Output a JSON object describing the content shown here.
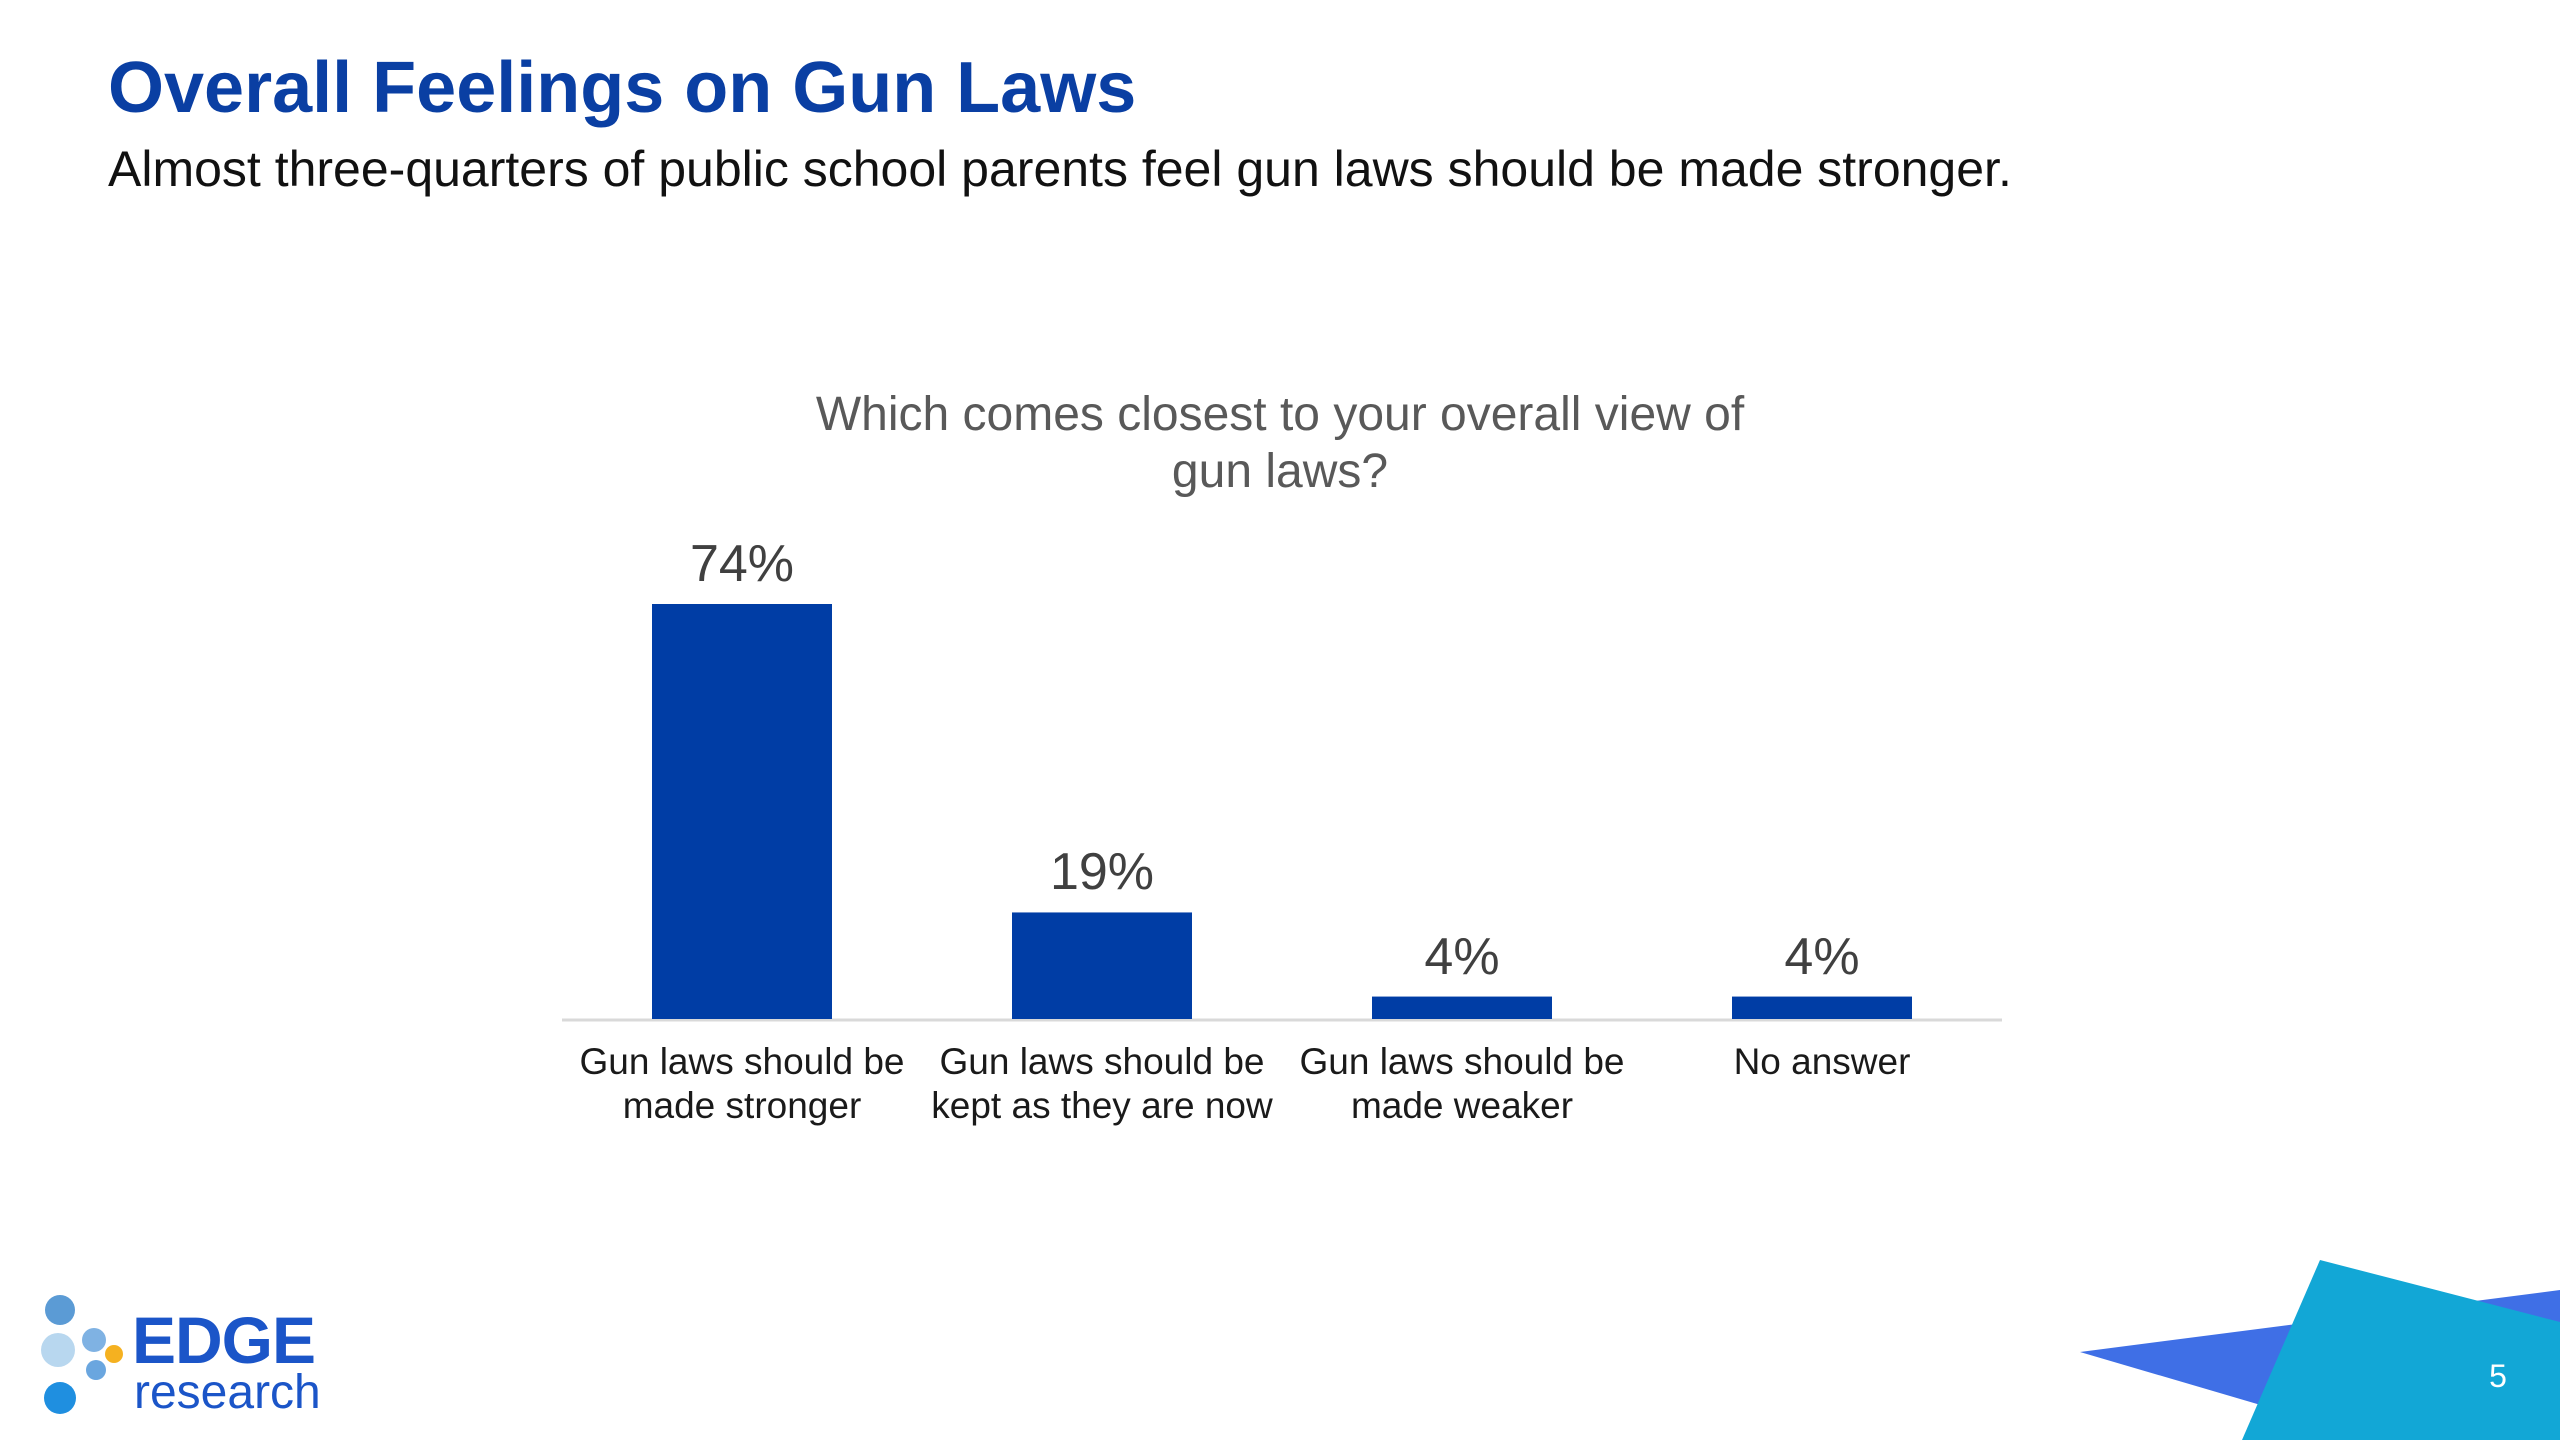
{
  "header": {
    "title": "Overall Feelings on Gun Laws",
    "subtitle": "Almost three-quarters of public school parents feel gun laws should be made stronger."
  },
  "chart_data": {
    "type": "bar",
    "title": "Which comes closest to your overall view of gun laws?",
    "categories": [
      "Gun laws should be made stronger",
      "Gun laws should be kept as they are now",
      "Gun laws should be made weaker",
      "No answer"
    ],
    "values": [
      74,
      19,
      4,
      4
    ],
    "value_labels": [
      "74%",
      "19%",
      "4%",
      "4%"
    ],
    "ylim": [
      0,
      80
    ],
    "grid": false,
    "legend": "none",
    "bar_color": "#003da5"
  },
  "logo": {
    "word": "EDGE",
    "sub": "research"
  },
  "footer": {
    "page_number": "5"
  },
  "colors": {
    "title": "#0a3fa3",
    "bar": "#003da5",
    "accent": "#1b55c8"
  }
}
